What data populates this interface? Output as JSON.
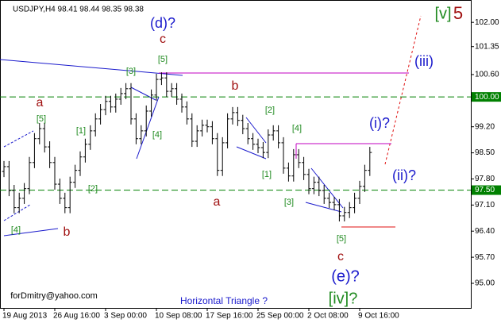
{
  "chart_data": {
    "type": "ohlc",
    "title": "USDJPY,H4 98.41 98.44 98.35 98.38",
    "color": "#000000",
    "categories": [
      "19 Aug 2013",
      null,
      null,
      null,
      null,
      null,
      null,
      null,
      null,
      null,
      "26 Aug 16:00",
      null,
      null,
      null,
      null,
      null,
      null,
      null,
      null,
      null,
      "3 Sep 00:00",
      null,
      null,
      null,
      null,
      null,
      null,
      null,
      null,
      null,
      "10 Sep 08:00",
      null,
      null,
      null,
      null,
      null,
      null,
      null,
      null,
      null,
      "17 Sep 16:00",
      null,
      null,
      null,
      null,
      null,
      null,
      null,
      null,
      null,
      "25 Sep 00:00",
      null,
      null,
      null,
      null,
      null,
      null,
      null,
      null,
      null,
      "2 Oct 08:00",
      null,
      null,
      null,
      null,
      null,
      null,
      null,
      null,
      null,
      "9 Oct 16:00",
      null,
      null
    ],
    "open": [
      98.0,
      98.13,
      97.49,
      97.03,
      97.28,
      97.54,
      98.24,
      98.88,
      99.15,
      98.66,
      98.24,
      97.66,
      97.28,
      97.03,
      97.71,
      98.03,
      98.39,
      98.73,
      99.09,
      99.41,
      99.66,
      99.88,
      99.73,
      99.94,
      100.09,
      100.22,
      99.41,
      98.88,
      99.09,
      99.62,
      100.05,
      100.47,
      100.51,
      100.15,
      100.22,
      99.94,
      99.73,
      99.41,
      98.81,
      99.09,
      99.24,
      99.2,
      98.88,
      98.03,
      98.77,
      99.41,
      99.58,
      99.37,
      99.15,
      98.88,
      98.73,
      98.64,
      98.51,
      98.98,
      99.09,
      98.77,
      98.09,
      97.88,
      98.45,
      98.24,
      97.92,
      97.54,
      97.71,
      97.49,
      97.28,
      97.17,
      97.11,
      96.81,
      96.9,
      97.03,
      97.28,
      97.6,
      98.03
    ],
    "high": [
      98.28,
      98.28,
      97.64,
      97.43,
      97.69,
      98.39,
      99.03,
      99.3,
      99.3,
      98.81,
      98.39,
      97.81,
      97.43,
      97.86,
      98.18,
      98.54,
      98.88,
      99.24,
      99.56,
      99.81,
      100.03,
      100.03,
      100.09,
      100.24,
      100.37,
      100.37,
      99.56,
      99.24,
      99.77,
      100.2,
      100.62,
      100.66,
      100.66,
      100.37,
      100.37,
      100.09,
      99.88,
      99.56,
      99.24,
      99.39,
      99.39,
      99.35,
      99.03,
      98.92,
      99.56,
      99.73,
      99.73,
      99.52,
      99.3,
      99.03,
      98.88,
      98.79,
      99.13,
      99.24,
      99.24,
      98.92,
      98.24,
      98.6,
      98.6,
      98.39,
      98.07,
      97.86,
      97.86,
      97.64,
      97.43,
      97.32,
      97.26,
      97.05,
      97.18,
      97.43,
      97.75,
      98.18,
      98.66
    ],
    "low": [
      97.85,
      97.34,
      96.88,
      96.88,
      97.13,
      97.39,
      98.09,
      98.73,
      98.51,
      98.09,
      97.51,
      97.13,
      96.88,
      96.88,
      97.56,
      97.88,
      98.24,
      98.58,
      98.94,
      99.26,
      99.51,
      99.58,
      99.58,
      99.79,
      99.94,
      99.26,
      98.73,
      98.73,
      98.94,
      99.47,
      99.9,
      100.32,
      100.0,
      100.0,
      99.79,
      99.58,
      99.26,
      98.66,
      98.66,
      98.94,
      99.05,
      98.73,
      97.88,
      97.88,
      98.62,
      99.26,
      99.22,
      99.0,
      98.73,
      98.58,
      98.49,
      98.36,
      98.36,
      98.83,
      98.62,
      97.94,
      97.73,
      97.73,
      98.09,
      97.77,
      97.39,
      97.39,
      97.34,
      97.13,
      97.02,
      96.96,
      96.66,
      96.66,
      96.75,
      96.88,
      97.13,
      97.45,
      97.88
    ],
    "close": [
      98.13,
      97.49,
      97.03,
      97.28,
      97.54,
      98.24,
      98.88,
      99.15,
      98.66,
      98.24,
      97.66,
      97.28,
      97.03,
      97.71,
      98.03,
      98.39,
      98.73,
      99.09,
      99.41,
      99.66,
      99.88,
      99.73,
      99.94,
      100.09,
      100.22,
      99.41,
      98.88,
      99.09,
      99.62,
      100.05,
      100.47,
      100.51,
      100.15,
      100.22,
      99.94,
      99.73,
      99.41,
      98.81,
      99.09,
      99.24,
      99.2,
      98.88,
      98.03,
      98.77,
      99.41,
      99.58,
      99.37,
      99.15,
      98.88,
      98.73,
      98.64,
      98.51,
      98.98,
      99.09,
      98.77,
      98.09,
      97.88,
      98.45,
      98.24,
      97.92,
      97.54,
      97.71,
      97.49,
      97.28,
      97.17,
      97.11,
      96.81,
      96.9,
      97.03,
      97.28,
      97.6,
      98.03,
      98.51
    ],
    "ylim": [
      94.34,
      102.6
    ],
    "yticks": [
      {
        "value": 102,
        "label": "102.00"
      },
      {
        "value": 101.35,
        "label": "101.35"
      },
      {
        "value": 100.6,
        "label": "100.60"
      },
      {
        "value": 99.2,
        "label": "99.20"
      },
      {
        "value": 98.5,
        "label": "98.50"
      },
      {
        "value": 97.8,
        "label": "97.80"
      },
      {
        "value": 97.1,
        "label": "97.10"
      },
      {
        "value": 96.4,
        "label": "96.40"
      },
      {
        "value": 95.7,
        "label": "95.70"
      },
      {
        "value": 95,
        "label": "95.00"
      }
    ],
    "levels": [
      {
        "value": 100,
        "label": "100.00",
        "color": "#008000"
      },
      {
        "value": 97.5,
        "label": "97.50",
        "color": "#008000"
      }
    ],
    "annotations": [
      {
        "text": "(d)?",
        "color": "#1a1acc"
      },
      {
        "text": "c",
        "color": "#a01010"
      },
      {
        "text": "[5]",
        "color": "#1f8a1f"
      },
      {
        "text": "[3]",
        "color": "#1f8a1f"
      },
      {
        "text": "[4]",
        "color": "#1f8a1f"
      },
      {
        "text": "[1]",
        "color": "#1f8a1f"
      },
      {
        "text": "[2]",
        "color": "#1f8a1f"
      },
      {
        "text": "[5]",
        "color": "#1f8a1f"
      },
      {
        "text": "a",
        "color": "#a01010"
      },
      {
        "text": "[4]",
        "color": "#1f8a1f"
      },
      {
        "text": "b",
        "color": "#a01010"
      },
      {
        "text": "b",
        "color": "#a01010"
      },
      {
        "text": "a",
        "color": "#a01010"
      },
      {
        "text": "[2]",
        "color": "#1f8a1f"
      },
      {
        "text": "[4]",
        "color": "#1f8a1f"
      },
      {
        "text": "[1]",
        "color": "#1f8a1f"
      },
      {
        "text": "[3]",
        "color": "#1f8a1f"
      },
      {
        "text": "[5]",
        "color": "#1f8a1f"
      },
      {
        "text": "c",
        "color": "#a01010"
      },
      {
        "text": "(e)?",
        "color": "#1a1acc"
      },
      {
        "text": "[iv]?",
        "color": "#1f8a1f"
      },
      {
        "text": "(i)?",
        "color": "#1a1acc"
      },
      {
        "text": "(ii)?",
        "color": "#1a1acc"
      },
      {
        "text": "(iii)",
        "color": "#1a1acc"
      },
      {
        "text": "[v]",
        "color": "#1f8a1f"
      },
      {
        "text": "5",
        "color": "#a01010"
      },
      {
        "text": "Horizontal Triangle ?",
        "color": "#1a1acc"
      },
      {
        "text": "forDmitry@yahoo.com",
        "color": "#000000"
      }
    ]
  }
}
